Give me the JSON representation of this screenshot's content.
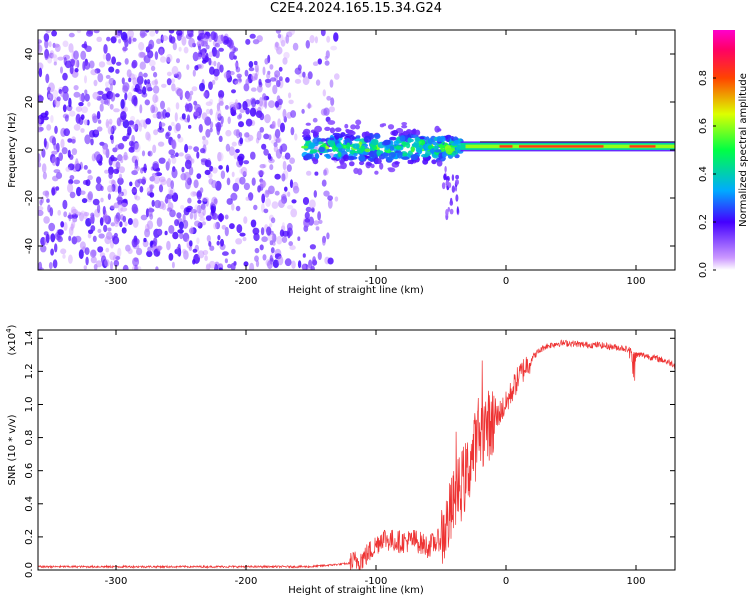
{
  "title": "C2E4.2024.165.15.34.G24",
  "chart_data": [
    {
      "type": "heatmap",
      "xlabel": "Height of straight line (km)",
      "ylabel": "Frequency (Hz)",
      "xlim": [
        -360,
        130
      ],
      "ylim": [
        -50,
        50
      ],
      "xticks": [
        -300,
        -200,
        -100,
        0,
        100
      ],
      "yticks": [
        -40,
        -20,
        0,
        20,
        40
      ],
      "colorbar": {
        "label": "Normalized spectral amplitude",
        "range": [
          0,
          1
        ],
        "ticks": [
          "0.0",
          "0.2",
          "0.4",
          "0.6",
          "0.8"
        ],
        "colormap": "rainbow (white-violet-blue-cyan-green-yellow-red-magenta)"
      },
      "features": [
        {
          "name": "noise",
          "x_range": [
            -360,
            -130
          ],
          "freq_range": [
            -50,
            50
          ],
          "amplitude": 0.1
        },
        {
          "name": "transition",
          "x_range": [
            -155,
            -35
          ],
          "freq_range": [
            -12,
            12
          ],
          "amplitude": 0.35
        },
        {
          "name": "tail",
          "x_range": [
            -48,
            -35
          ],
          "freq_range": [
            -28,
            -8
          ],
          "amplitude": 0.15
        },
        {
          "name": "carrier",
          "x_range": [
            -35,
            130
          ],
          "freq_range": [
            0,
            3
          ],
          "amplitude": 0.85
        }
      ]
    },
    {
      "type": "line",
      "xlabel": "Height of straight line (km)",
      "ylabel": "SNR (10 * v/v)",
      "y_multiplier": "(x10",
      "y_multiplier_exp": "4",
      "xlim": [
        -360,
        130
      ],
      "ylim": [
        0,
        1.45
      ],
      "xticks": [
        -300,
        -200,
        -100,
        0,
        100
      ],
      "yticks": [
        "0.0",
        "0.2",
        "0.4",
        "0.6",
        "0.8",
        "1.0",
        "1.2",
        "1.4"
      ],
      "color": "#ee3333",
      "series": [
        {
          "x": [
            -360,
            -300,
            -250,
            -200,
            -150,
            -120,
            -110,
            -100,
            -95,
            -90,
            -80,
            -70,
            -60,
            -50,
            -45,
            -40,
            -35,
            -30,
            -25,
            -20,
            -15,
            -10,
            -5,
            0,
            5,
            10,
            15,
            20,
            25,
            30,
            40,
            50,
            60,
            70,
            80,
            90,
            95,
            100,
            105,
            110,
            120,
            130
          ],
          "values": [
            0.02,
            0.02,
            0.02,
            0.02,
            0.02,
            0.04,
            0.07,
            0.15,
            0.2,
            0.18,
            0.17,
            0.18,
            0.14,
            0.19,
            0.28,
            0.4,
            0.5,
            0.58,
            0.72,
            0.82,
            0.87,
            0.89,
            0.95,
            1.0,
            1.09,
            1.17,
            1.23,
            1.28,
            1.32,
            1.35,
            1.37,
            1.37,
            1.36,
            1.36,
            1.35,
            1.34,
            1.33,
            1.3,
            1.3,
            1.29,
            1.27,
            1.24
          ]
        }
      ]
    }
  ]
}
